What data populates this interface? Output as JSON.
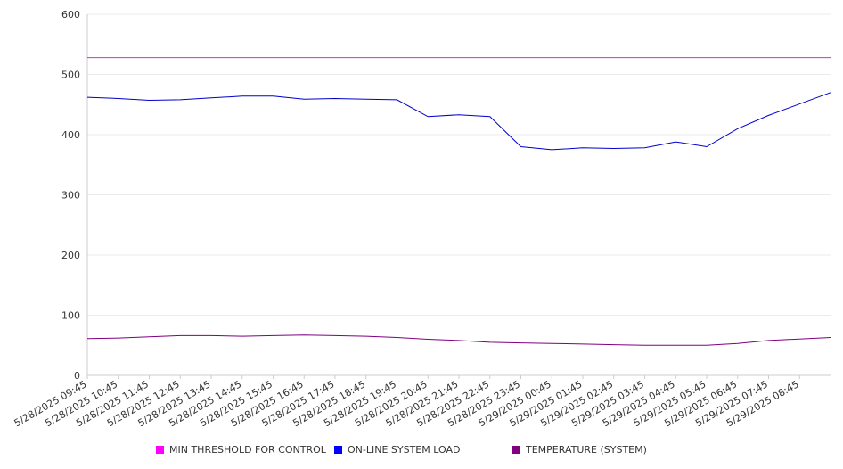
{
  "chart_data": {
    "type": "line",
    "title": "",
    "xlabel": "",
    "ylabel": "",
    "ylim": [
      0,
      600
    ],
    "yticks": [
      0,
      100,
      200,
      300,
      400,
      500,
      600
    ],
    "grid": "horizontal",
    "legend_position": "bottom",
    "categories": [
      "5/28/2025 09:45",
      "5/28/2025 10:45",
      "5/28/2025 11:45",
      "5/28/2025 12:45",
      "5/28/2025 13:45",
      "5/28/2025 14:45",
      "5/28/2025 15:45",
      "5/28/2025 16:45",
      "5/28/2025 17:45",
      "5/28/2025 18:45",
      "5/28/2025 19:45",
      "5/28/2025 20:45",
      "5/28/2025 21:45",
      "5/28/2025 22:45",
      "5/28/2025 23:45",
      "5/29/2025 00:45",
      "5/29/2025 01:45",
      "5/29/2025 02:45",
      "5/29/2025 03:45",
      "5/29/2025 04:45",
      "5/29/2025 05:45",
      "5/29/2025 06:45",
      "5/29/2025 07:45",
      "5/29/2025 08:45"
    ],
    "series": [
      {
        "name": "MIN THRESHOLD FOR CONTROL",
        "color": "#cc33cc",
        "legend_color": "#ff00ff",
        "values": [
          528,
          528,
          528,
          528,
          528,
          528,
          528,
          528,
          528,
          528,
          528,
          528,
          528,
          528,
          528,
          528,
          528,
          528,
          528,
          528,
          528,
          528,
          528,
          528
        ]
      },
      {
        "name": "ON-LINE SYSTEM LOAD",
        "color": "#0000cc",
        "legend_color": "#0000ff",
        "values": [
          462,
          460,
          457,
          458,
          461,
          464,
          464,
          459,
          460,
          459,
          458,
          430,
          433,
          430,
          380,
          375,
          378,
          377,
          378,
          388,
          380,
          410,
          432,
          470
        ]
      },
      {
        "name": "TEMPERATURE (SYSTEM)",
        "color": "#800080",
        "legend_color": "#800080",
        "values": [
          61,
          62,
          64,
          66,
          66,
          65,
          66,
          67,
          66,
          65,
          63,
          60,
          58,
          55,
          54,
          53,
          52,
          51,
          50,
          50,
          50,
          53,
          58,
          63
        ]
      }
    ]
  }
}
